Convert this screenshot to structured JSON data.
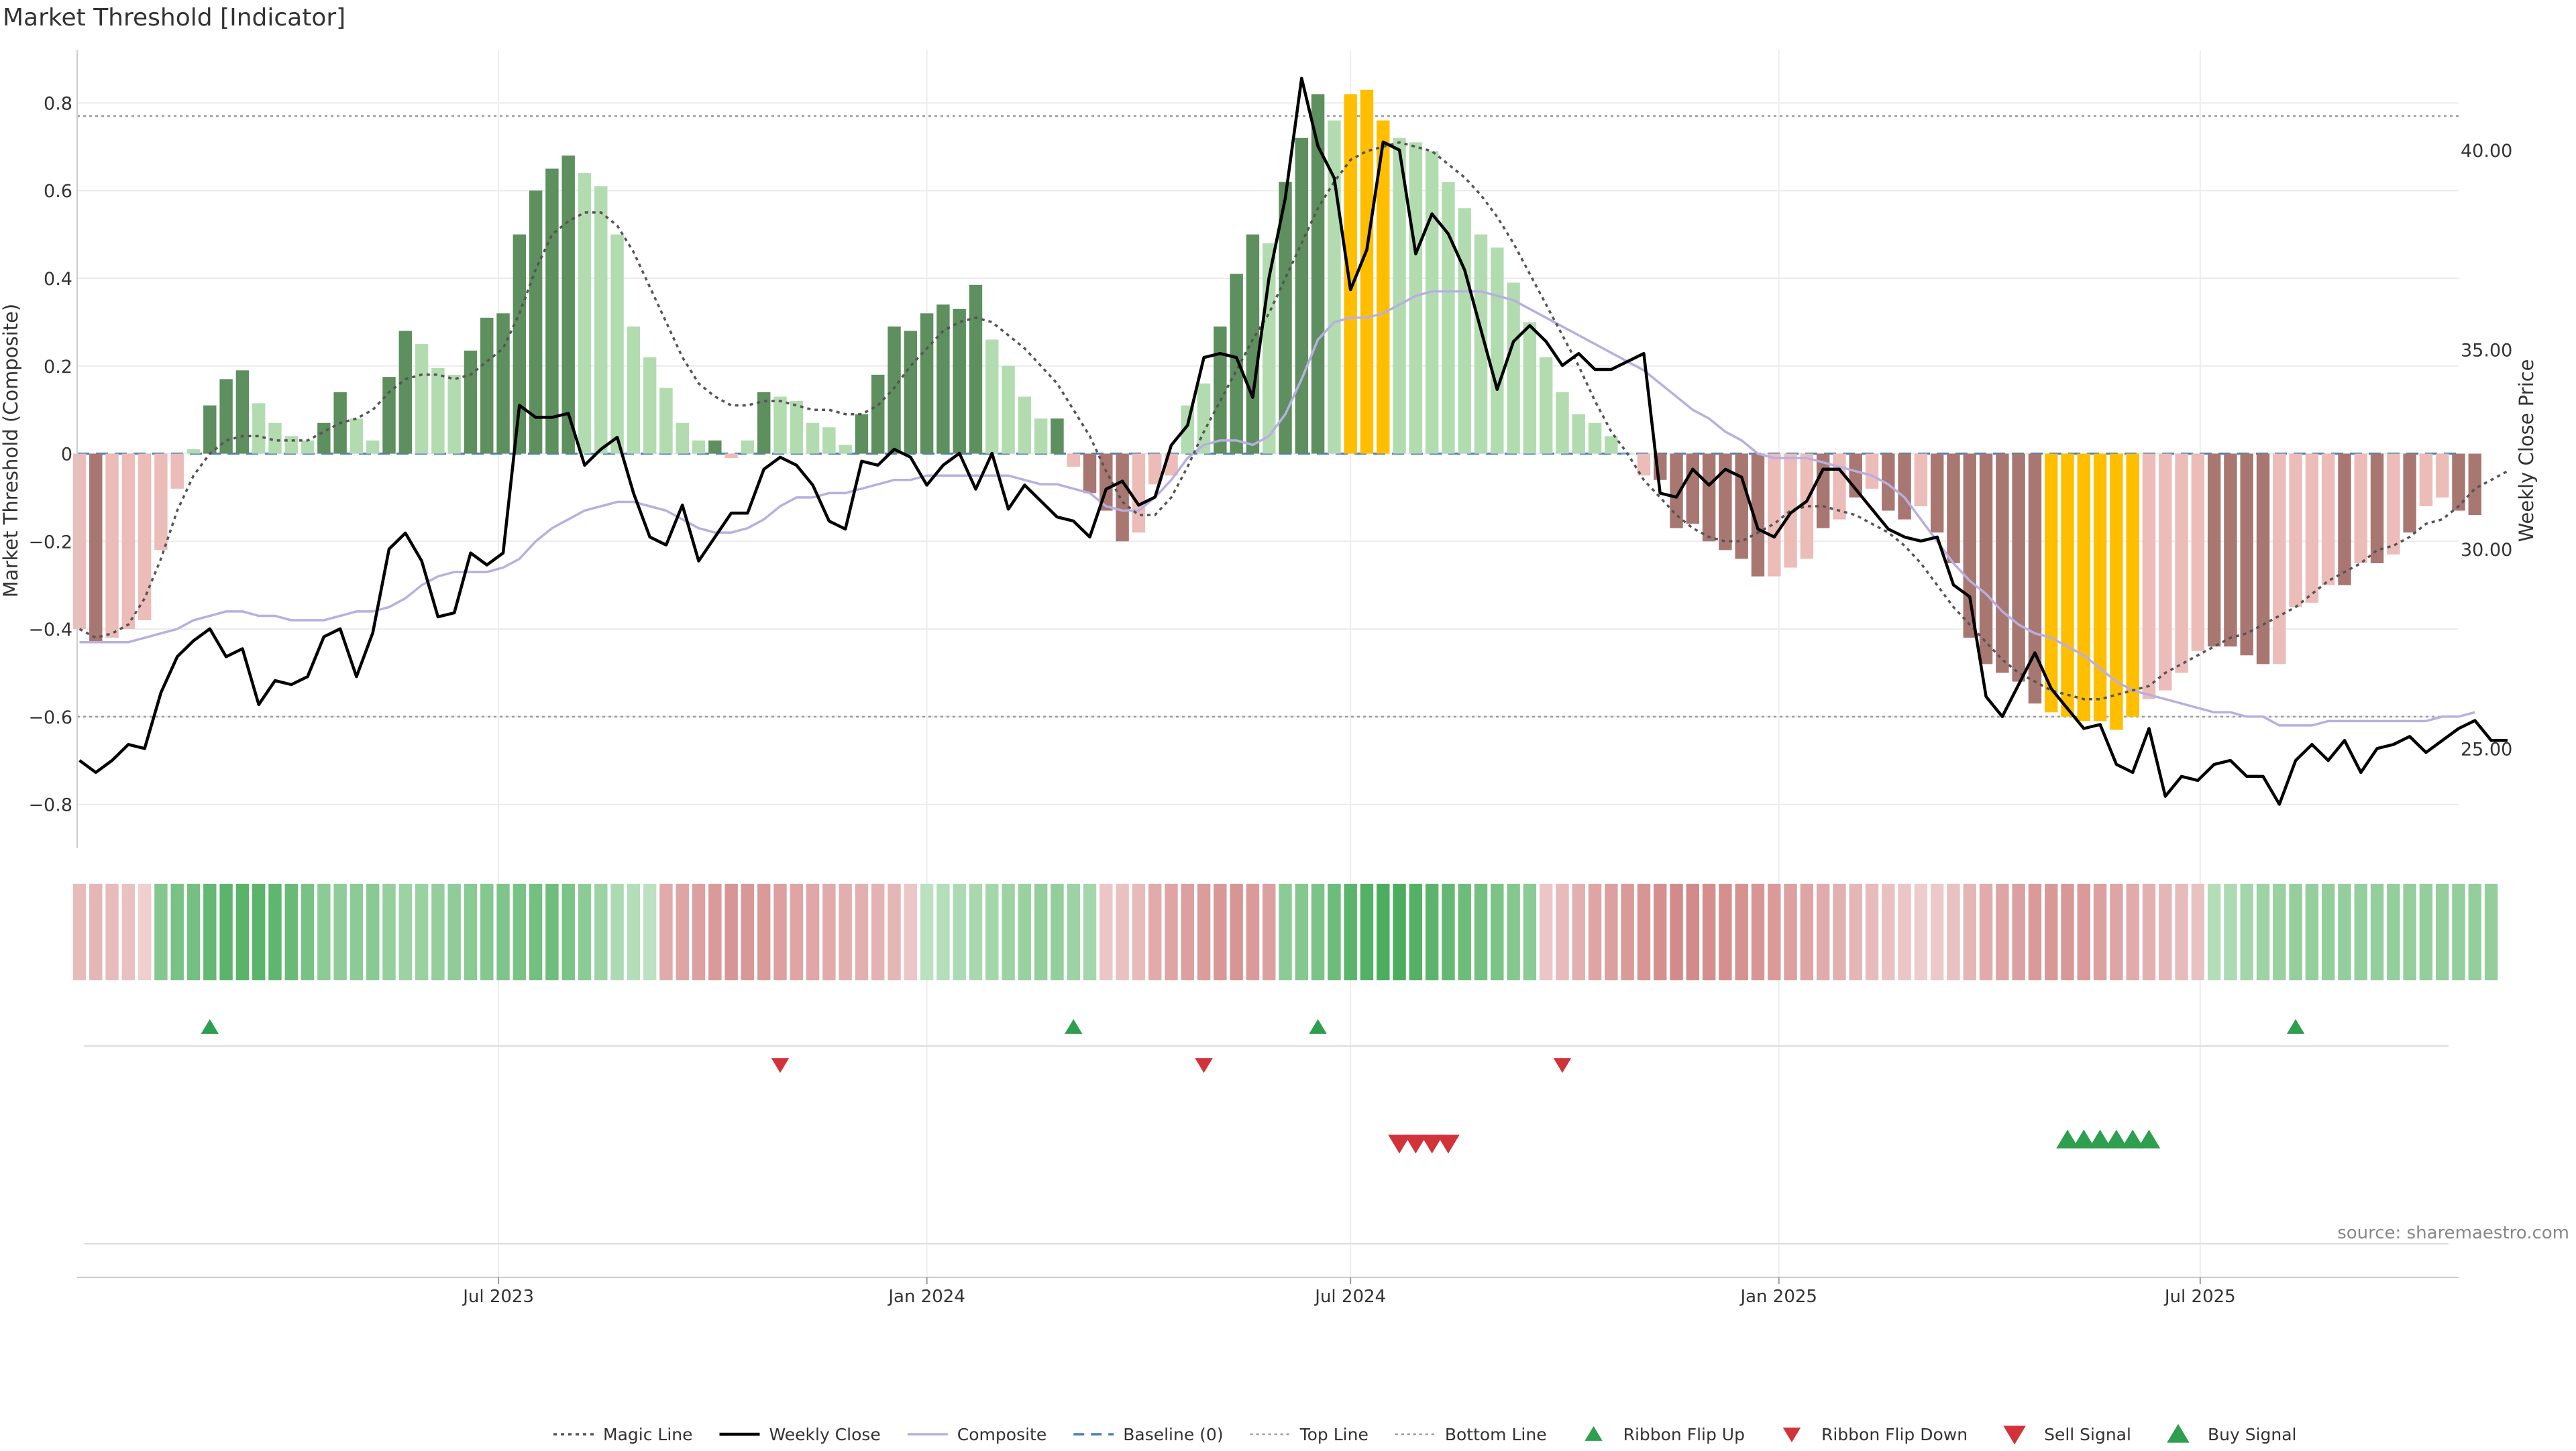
{
  "chart_data": {
    "type": "bar",
    "title": "Market Threshold [Indicator]",
    "ylabel": "Market Threshold (Composite)",
    "ylabel_right": "Weekly Close Price",
    "xlabel": "",
    "ylim": [
      -0.9,
      0.92
    ],
    "y_ticks": [
      0.8,
      0.6,
      0.4,
      0.2,
      0,
      -0.2,
      -0.4,
      -0.6,
      -0.8
    ],
    "y_tick_labels": [
      "0.8",
      "0.6",
      "0.4",
      "0.2",
      "0",
      "−0.2",
      "−0.4",
      "−0.6",
      "−0.8"
    ],
    "ylim_right": [
      22.5,
      42.5
    ],
    "y_right_ticks": [
      40,
      35,
      30,
      25
    ],
    "y_right_tick_labels": [
      "40.00",
      "35.00",
      "30.00",
      "25.00"
    ],
    "x_range": [
      "2023-01-01",
      "2025-10-20"
    ],
    "x_ticks": [
      "2023-07-01",
      "2024-01-01",
      "2024-07-01",
      "2025-01-01",
      "2025-07-01"
    ],
    "x_tick_labels": [
      "Jul 2023",
      "Jan 2024",
      "Jul 2024",
      "Jan 2025",
      "Jul 2025"
    ],
    "start_date": "2023-01-02",
    "top_line": 0.77,
    "bottom_line": -0.6,
    "grid": true,
    "legend_placement": "bottom-center",
    "source": "source: sharemaestro.com",
    "colors": {
      "strong_up": "#5e8f5e",
      "weak_up": "#b2dcb0",
      "strong_down": "#a87772",
      "weak_down": "#ecbcb8",
      "extreme": "#ffbf00",
      "weekly_close": "#000000",
      "composite": "#b8afe0",
      "magic_line": "#555555",
      "baseline": "#4a7fb5",
      "buy": "#2e9e4f",
      "sell": "#d2323a"
    },
    "legend": [
      {
        "label": "Magic Line",
        "style": "dotted-dark"
      },
      {
        "label": "Weekly Close",
        "style": "solid-black"
      },
      {
        "label": "Composite",
        "style": "solid-lavender"
      },
      {
        "label": "Baseline (0)",
        "style": "dashed-blue"
      },
      {
        "label": "Top Line",
        "style": "dotted-gray"
      },
      {
        "label": "Bottom Line",
        "style": "dotted-gray"
      },
      {
        "label": "Ribbon Flip Up",
        "style": "triangle-up-small"
      },
      {
        "label": "Ribbon Flip Down",
        "style": "triangle-down-small"
      },
      {
        "label": "Sell Signal",
        "style": "triangle-down-large"
      },
      {
        "label": "Buy Signal",
        "style": "triangle-up-large"
      }
    ],
    "bar_values": [
      -0.4,
      -0.43,
      -0.42,
      -0.4,
      -0.38,
      -0.22,
      -0.08,
      0.01,
      0.11,
      0.17,
      0.19,
      0.115,
      0.07,
      0.04,
      0.03,
      0.07,
      0.14,
      0.08,
      0.03,
      0.175,
      0.28,
      0.25,
      0.195,
      0.18,
      0.235,
      0.31,
      0.32,
      0.5,
      0.6,
      0.65,
      0.68,
      0.64,
      0.61,
      0.5,
      0.29,
      0.22,
      0.15,
      0.07,
      0.03,
      0.03,
      -0.01,
      0.03,
      0.14,
      0.13,
      0.12,
      0.07,
      0.06,
      0.02,
      0.09,
      0.18,
      0.29,
      0.28,
      0.32,
      0.34,
      0.33,
      0.385,
      0.26,
      0.2,
      0.13,
      0.08,
      0.08,
      -0.03,
      -0.09,
      -0.13,
      -0.2,
      -0.18,
      -0.07,
      -0.05,
      0.11,
      0.16,
      0.29,
      0.41,
      0.5,
      0.48,
      0.62,
      0.72,
      0.82,
      0.76,
      0.82,
      0.83,
      0.76,
      0.72,
      0.71,
      0.69,
      0.62,
      0.56,
      0.5,
      0.47,
      0.39,
      0.3,
      0.22,
      0.14,
      0.09,
      0.07,
      0.04,
      0.0,
      -0.05,
      -0.06,
      -0.17,
      -0.16,
      -0.2,
      -0.22,
      -0.24,
      -0.28,
      -0.28,
      -0.26,
      -0.24,
      -0.17,
      -0.15,
      -0.1,
      -0.08,
      -0.13,
      -0.15,
      -0.12,
      -0.18,
      -0.25,
      -0.42,
      -0.48,
      -0.5,
      -0.52,
      -0.57,
      -0.59,
      -0.6,
      -0.61,
      -0.61,
      -0.63,
      -0.6,
      -0.56,
      -0.54,
      -0.5,
      -0.45,
      -0.44,
      -0.44,
      -0.46,
      -0.48,
      -0.48,
      -0.35,
      -0.34,
      -0.3,
      -0.3,
      -0.25,
      -0.25,
      -0.23,
      -0.18,
      -0.12,
      -0.1,
      -0.13,
      -0.14
    ],
    "bar_colors": [
      "weak_down",
      "strong_down",
      "weak_down",
      "weak_down",
      "weak_down",
      "weak_down",
      "weak_down",
      "weak_up",
      "strong_up",
      "strong_up",
      "strong_up",
      "weak_up",
      "weak_up",
      "weak_up",
      "weak_up",
      "strong_up",
      "strong_up",
      "weak_up",
      "weak_up",
      "strong_up",
      "strong_up",
      "weak_up",
      "weak_up",
      "weak_up",
      "strong_up",
      "strong_up",
      "strong_up",
      "strong_up",
      "strong_up",
      "strong_up",
      "strong_up",
      "weak_up",
      "weak_up",
      "weak_up",
      "weak_up",
      "weak_up",
      "weak_up",
      "weak_up",
      "weak_up",
      "strong_up",
      "weak_down",
      "weak_up",
      "strong_up",
      "weak_up",
      "weak_up",
      "weak_up",
      "weak_up",
      "weak_up",
      "strong_up",
      "strong_up",
      "strong_up",
      "strong_up",
      "strong_up",
      "strong_up",
      "strong_up",
      "strong_up",
      "weak_up",
      "weak_up",
      "weak_up",
      "weak_up",
      "strong_up",
      "weak_down",
      "strong_down",
      "strong_down",
      "strong_down",
      "weak_down",
      "weak_down",
      "weak_down",
      "weak_up",
      "weak_up",
      "strong_up",
      "strong_up",
      "strong_up",
      "weak_up",
      "strong_up",
      "strong_up",
      "strong_up",
      "weak_up",
      "extreme",
      "extreme",
      "extreme",
      "weak_up",
      "weak_up",
      "weak_up",
      "weak_up",
      "weak_up",
      "weak_up",
      "weak_up",
      "weak_up",
      "weak_up",
      "weak_up",
      "weak_up",
      "weak_up",
      "weak_up",
      "weak_up",
      "weak_up",
      "weak_down",
      "strong_down",
      "strong_down",
      "strong_down",
      "strong_down",
      "strong_down",
      "strong_down",
      "strong_down",
      "weak_down",
      "weak_down",
      "weak_down",
      "strong_down",
      "weak_down",
      "strong_down",
      "weak_down",
      "strong_down",
      "strong_down",
      "weak_down",
      "strong_down",
      "strong_down",
      "strong_down",
      "strong_down",
      "strong_down",
      "strong_down",
      "strong_down",
      "extreme",
      "extreme",
      "extreme",
      "extreme",
      "extreme",
      "extreme",
      "weak_down",
      "weak_down",
      "weak_down",
      "weak_down",
      "strong_down",
      "strong_down",
      "strong_down",
      "strong_down",
      "weak_down",
      "weak_down",
      "weak_down",
      "weak_down",
      "strong_down",
      "weak_down",
      "strong_down",
      "weak_down",
      "strong_down",
      "weak_down",
      "weak_down",
      "strong_down",
      "strong_down"
    ],
    "weekly_close": [
      24.7,
      24.4,
      24.7,
      25.1,
      25.0,
      26.4,
      27.3,
      27.7,
      28.0,
      27.3,
      27.5,
      26.1,
      26.7,
      26.6,
      26.8,
      27.8,
      28.0,
      26.8,
      27.9,
      30.0,
      30.4,
      29.7,
      28.3,
      28.4,
      29.9,
      29.6,
      29.9,
      33.6,
      33.3,
      33.3,
      33.4,
      32.1,
      32.5,
      32.8,
      31.4,
      30.3,
      30.1,
      31.1,
      29.7,
      30.3,
      30.9,
      30.9,
      32.0,
      32.3,
      32.1,
      31.6,
      30.7,
      30.5,
      32.2,
      32.1,
      32.5,
      32.3,
      31.6,
      32.1,
      32.4,
      31.5,
      32.4,
      31.0,
      31.6,
      31.2,
      30.8,
      30.7,
      30.3,
      31.5,
      31.7,
      31.1,
      31.3,
      32.6,
      33.1,
      34.8,
      34.9,
      34.8,
      33.8,
      36.8,
      38.8,
      41.8,
      40.1,
      39.3,
      36.5,
      37.5,
      40.2,
      40.0,
      37.4,
      38.4,
      37.9,
      37.0,
      35.5,
      34.0,
      35.2,
      35.6,
      35.2,
      34.6,
      34.9,
      34.5,
      34.5,
      34.7,
      34.9,
      31.4,
      31.3,
      32.0,
      31.6,
      32.0,
      31.8,
      30.5,
      30.3,
      30.9,
      31.2,
      32.0,
      32.0,
      31.5,
      31.0,
      30.5,
      30.3,
      30.2,
      30.3,
      29.1,
      28.8,
      26.3,
      25.8,
      26.6,
      27.4,
      26.5,
      26.0,
      25.5,
      25.6,
      24.6,
      24.4,
      25.5,
      23.8,
      24.3,
      24.2,
      24.6,
      24.7,
      24.3,
      24.3,
      23.6,
      24.7,
      25.1,
      24.7,
      25.2,
      24.4,
      25.0,
      25.1,
      25.3,
      24.9,
      25.2,
      25.5,
      25.7,
      25.2,
      25.2
    ],
    "composite": [
      -0.43,
      -0.43,
      -0.43,
      -0.43,
      -0.42,
      -0.41,
      -0.4,
      -0.38,
      -0.37,
      -0.36,
      -0.36,
      -0.37,
      -0.37,
      -0.38,
      -0.38,
      -0.38,
      -0.37,
      -0.36,
      -0.36,
      -0.35,
      -0.33,
      -0.3,
      -0.28,
      -0.27,
      -0.27,
      -0.27,
      -0.26,
      -0.24,
      -0.2,
      -0.17,
      -0.15,
      -0.13,
      -0.12,
      -0.11,
      -0.11,
      -0.12,
      -0.13,
      -0.15,
      -0.17,
      -0.18,
      -0.18,
      -0.17,
      -0.15,
      -0.12,
      -0.1,
      -0.1,
      -0.09,
      -0.09,
      -0.08,
      -0.07,
      -0.06,
      -0.06,
      -0.05,
      -0.05,
      -0.05,
      -0.05,
      -0.05,
      -0.05,
      -0.06,
      -0.07,
      -0.07,
      -0.08,
      -0.09,
      -0.12,
      -0.13,
      -0.13,
      -0.1,
      -0.06,
      -0.01,
      0.02,
      0.03,
      0.03,
      0.02,
      0.04,
      0.09,
      0.17,
      0.26,
      0.3,
      0.31,
      0.31,
      0.32,
      0.34,
      0.36,
      0.37,
      0.37,
      0.37,
      0.37,
      0.36,
      0.35,
      0.33,
      0.31,
      0.29,
      0.27,
      0.25,
      0.23,
      0.21,
      0.19,
      0.16,
      0.13,
      0.1,
      0.08,
      0.05,
      0.03,
      0.0,
      -0.01,
      -0.01,
      -0.01,
      -0.02,
      -0.03,
      -0.04,
      -0.05,
      -0.07,
      -0.1,
      -0.15,
      -0.2,
      -0.25,
      -0.29,
      -0.32,
      -0.36,
      -0.39,
      -0.41,
      -0.42,
      -0.44,
      -0.46,
      -0.49,
      -0.52,
      -0.54,
      -0.55,
      -0.56,
      -0.57,
      -0.58,
      -0.59,
      -0.59,
      -0.6,
      -0.6,
      -0.62,
      -0.62,
      -0.62,
      -0.61,
      -0.61,
      -0.61,
      -0.61,
      -0.61,
      -0.61,
      -0.61,
      -0.6,
      -0.6,
      -0.59
    ],
    "magic_line": [
      -0.4,
      -0.42,
      -0.41,
      -0.39,
      -0.33,
      -0.24,
      -0.13,
      -0.05,
      0.0,
      0.03,
      0.04,
      0.04,
      0.03,
      0.03,
      0.03,
      0.05,
      0.07,
      0.08,
      0.1,
      0.14,
      0.17,
      0.18,
      0.18,
      0.17,
      0.18,
      0.21,
      0.24,
      0.32,
      0.42,
      0.5,
      0.53,
      0.55,
      0.55,
      0.52,
      0.46,
      0.38,
      0.3,
      0.22,
      0.16,
      0.13,
      0.11,
      0.11,
      0.12,
      0.12,
      0.11,
      0.1,
      0.1,
      0.09,
      0.09,
      0.11,
      0.15,
      0.2,
      0.24,
      0.28,
      0.3,
      0.31,
      0.3,
      0.27,
      0.24,
      0.2,
      0.16,
      0.1,
      0.04,
      -0.04,
      -0.11,
      -0.14,
      -0.14,
      -0.1,
      -0.03,
      0.05,
      0.12,
      0.19,
      0.26,
      0.32,
      0.4,
      0.48,
      0.56,
      0.62,
      0.67,
      0.69,
      0.7,
      0.71,
      0.7,
      0.69,
      0.66,
      0.63,
      0.59,
      0.54,
      0.48,
      0.41,
      0.34,
      0.27,
      0.2,
      0.12,
      0.05,
      0.0,
      -0.06,
      -0.1,
      -0.14,
      -0.17,
      -0.19,
      -0.2,
      -0.2,
      -0.18,
      -0.16,
      -0.13,
      -0.12,
      -0.12,
      -0.13,
      -0.14,
      -0.16,
      -0.18,
      -0.21,
      -0.25,
      -0.3,
      -0.35,
      -0.39,
      -0.43,
      -0.47,
      -0.5,
      -0.52,
      -0.54,
      -0.55,
      -0.56,
      -0.56,
      -0.55,
      -0.54,
      -0.53,
      -0.5,
      -0.48,
      -0.46,
      -0.44,
      -0.42,
      -0.41,
      -0.39,
      -0.37,
      -0.35,
      -0.32,
      -0.29,
      -0.27,
      -0.25,
      -0.22,
      -0.21,
      -0.19,
      -0.16,
      -0.15,
      -0.12,
      -0.08,
      -0.06,
      -0.04
    ],
    "ribbon_values": [
      -0.3,
      -0.35,
      -0.3,
      -0.25,
      -0.12,
      0.55,
      0.62,
      0.65,
      0.75,
      0.8,
      0.82,
      0.8,
      0.78,
      0.72,
      0.62,
      0.5,
      0.48,
      0.5,
      0.52,
      0.44,
      0.4,
      0.42,
      0.45,
      0.48,
      0.52,
      0.55,
      0.58,
      0.62,
      0.66,
      0.68,
      0.6,
      0.5,
      0.4,
      0.3,
      0.25,
      0.2,
      -0.45,
      -0.5,
      -0.55,
      -0.6,
      -0.65,
      -0.62,
      -0.6,
      -0.55,
      -0.5,
      -0.48,
      -0.45,
      -0.42,
      -0.4,
      -0.38,
      -0.35,
      -0.2,
      0.2,
      0.25,
      0.3,
      0.32,
      0.35,
      0.4,
      0.42,
      0.45,
      0.45,
      0.4,
      0.35,
      -0.2,
      -0.25,
      -0.3,
      -0.45,
      -0.5,
      -0.55,
      -0.58,
      -0.62,
      -0.65,
      -0.6,
      -0.55,
      0.5,
      0.55,
      0.6,
      0.7,
      0.8,
      0.85,
      0.9,
      0.9,
      0.85,
      0.8,
      0.75,
      0.7,
      0.65,
      0.6,
      0.55,
      0.5,
      -0.2,
      -0.3,
      -0.4,
      -0.5,
      -0.55,
      -0.6,
      -0.65,
      -0.7,
      -0.75,
      -0.75,
      -0.72,
      -0.7,
      -0.68,
      -0.65,
      -0.6,
      -0.55,
      -0.5,
      -0.45,
      -0.4,
      -0.35,
      -0.3,
      -0.25,
      -0.2,
      -0.15,
      -0.18,
      -0.25,
      -0.35,
      -0.45,
      -0.5,
      -0.55,
      -0.6,
      -0.62,
      -0.62,
      -0.6,
      -0.55,
      -0.5,
      -0.45,
      -0.4,
      -0.35,
      -0.3,
      -0.25,
      0.25,
      0.3,
      0.35,
      0.4,
      0.42,
      0.45,
      0.45,
      0.45,
      0.45,
      0.45,
      0.45,
      0.45,
      0.45,
      0.45,
      0.45,
      0.45,
      0.45,
      0.45
    ],
    "ribbon_flip_up": [
      "2023-02-27",
      "2024-03-04",
      "2024-06-17",
      "2025-08-11"
    ],
    "ribbon_flip_down": [
      "2023-10-30",
      "2024-04-29",
      "2024-09-30"
    ],
    "sell_signals": [
      "2024-07-22",
      "2024-07-29",
      "2024-08-05",
      "2024-08-12"
    ],
    "buy_signals": [
      "2025-05-05",
      "2025-05-12",
      "2025-05-19",
      "2025-05-26",
      "2025-06-02",
      "2025-06-09"
    ]
  }
}
